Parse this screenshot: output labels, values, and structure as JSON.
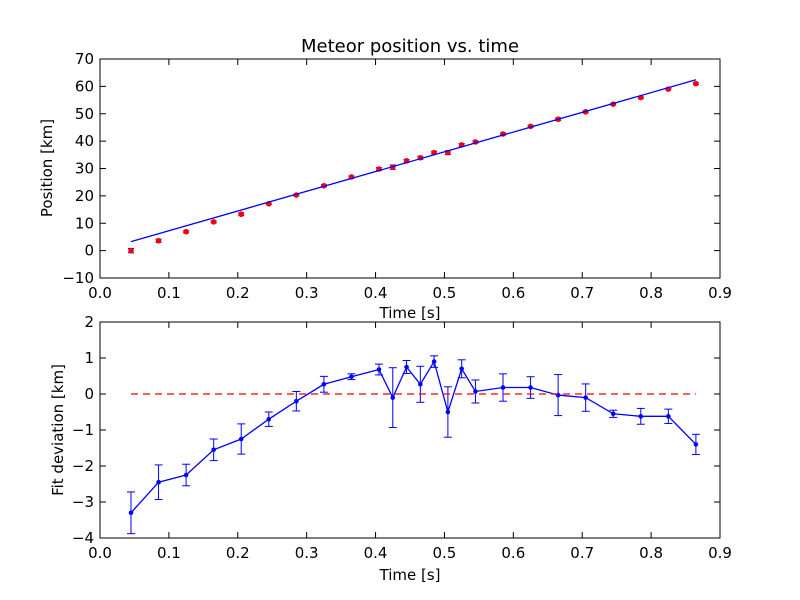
{
  "chart_data": [
    {
      "type": "scatter",
      "title": "Meteor position vs. time",
      "xlabel": "Time [s]",
      "ylabel": "Position [km]",
      "xlim": [
        0.0,
        0.9
      ],
      "ylim": [
        -10,
        70
      ],
      "xticks": [
        "0.0",
        "0.1",
        "0.2",
        "0.3",
        "0.4",
        "0.5",
        "0.6",
        "0.7",
        "0.8",
        "0.9"
      ],
      "yticks": [
        "−10",
        "0",
        "10",
        "20",
        "30",
        "40",
        "50",
        "60",
        "70"
      ],
      "grid": false,
      "series": [
        {
          "kind": "errorbar-markers",
          "color": "#ff0000",
          "x": [
            0.045,
            0.085,
            0.125,
            0.165,
            0.205,
            0.245,
            0.285,
            0.325,
            0.365,
            0.405,
            0.425,
            0.445,
            0.465,
            0.485,
            0.505,
            0.525,
            0.545,
            0.585,
            0.625,
            0.665,
            0.705,
            0.745,
            0.785,
            0.825,
            0.865
          ],
          "y": [
            0.0,
            3.6,
            6.9,
            10.5,
            13.3,
            17.1,
            20.3,
            23.7,
            26.9,
            29.8,
            30.5,
            32.8,
            33.9,
            35.8,
            35.8,
            38.6,
            39.7,
            42.6,
            45.4,
            48.0,
            50.7,
            53.5,
            55.9,
            59.0,
            61.0
          ],
          "yerr": [
            0.8,
            0.6,
            0.4,
            0.4,
            0.5,
            0.3,
            0.3,
            0.4,
            0.4,
            0.5,
            0.8,
            0.5,
            0.6,
            0.5,
            0.7,
            0.5,
            0.4,
            0.4,
            0.4,
            0.5,
            0.4,
            0.3,
            0.3,
            0.3,
            0.4
          ]
        },
        {
          "kind": "line",
          "color": "#0000ff",
          "x": [
            0.045,
            0.865
          ],
          "y": [
            3.3,
            62.4
          ]
        }
      ]
    },
    {
      "type": "line",
      "title": "",
      "xlabel": "Time [s]",
      "ylabel": "Fit deviation [km]",
      "xlim": [
        0.0,
        0.9
      ],
      "ylim": [
        -4,
        2
      ],
      "xticks": [
        "0.0",
        "0.1",
        "0.2",
        "0.3",
        "0.4",
        "0.5",
        "0.6",
        "0.7",
        "0.8",
        "0.9"
      ],
      "yticks": [
        "−4",
        "−3",
        "−2",
        "−1",
        "0",
        "1",
        "2"
      ],
      "grid": false,
      "series": [
        {
          "kind": "errorbar-line",
          "color": "#0000ff",
          "x": [
            0.045,
            0.085,
            0.125,
            0.165,
            0.205,
            0.245,
            0.285,
            0.325,
            0.365,
            0.405,
            0.425,
            0.445,
            0.465,
            0.485,
            0.505,
            0.525,
            0.545,
            0.585,
            0.625,
            0.665,
            0.705,
            0.745,
            0.785,
            0.825,
            0.865
          ],
          "y": [
            -3.3,
            -2.45,
            -2.25,
            -1.55,
            -1.25,
            -0.7,
            -0.2,
            0.27,
            0.48,
            0.68,
            -0.1,
            0.75,
            0.27,
            0.9,
            -0.5,
            0.7,
            0.07,
            0.18,
            0.18,
            -0.03,
            -0.1,
            -0.55,
            -0.62,
            -0.62,
            -1.4
          ],
          "yerr": [
            0.58,
            0.48,
            0.3,
            0.3,
            0.42,
            0.2,
            0.27,
            0.22,
            0.08,
            0.15,
            0.83,
            0.18,
            0.5,
            0.16,
            0.7,
            0.25,
            0.32,
            0.38,
            0.3,
            0.57,
            0.38,
            0.1,
            0.22,
            0.2,
            0.28
          ]
        },
        {
          "kind": "dashed-line",
          "color": "#ff0000",
          "x": [
            0.045,
            0.865
          ],
          "y": [
            0,
            0
          ]
        }
      ]
    }
  ]
}
